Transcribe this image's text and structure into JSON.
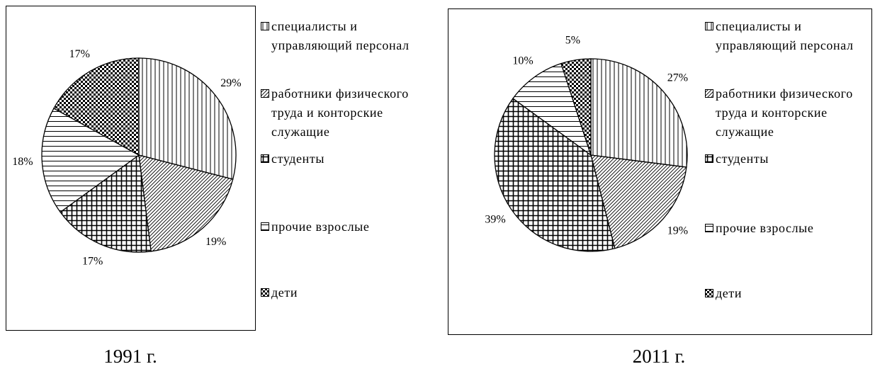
{
  "chart_data": [
    {
      "type": "pie",
      "title": "1991 г.",
      "categories": [
        "специалисты и управляющий персонал",
        "работники физического труда и конторские служащие",
        "студенты",
        "прочие взрослые",
        "дети"
      ],
      "values": [
        29,
        19,
        17,
        18,
        17
      ],
      "value_labels": [
        "29%",
        "19%",
        "17%",
        "18%",
        "17%"
      ]
    },
    {
      "type": "pie",
      "title": "2011 г.",
      "categories": [
        "специалисты и управляющий персонал",
        "работники физического труда и конторские служащие",
        "студенты",
        "прочие взрослые",
        "дети"
      ],
      "values": [
        27,
        19,
        39,
        10,
        5
      ],
      "value_labels": [
        "27%",
        "19%",
        "39%",
        "10%",
        "5%"
      ]
    }
  ]
}
